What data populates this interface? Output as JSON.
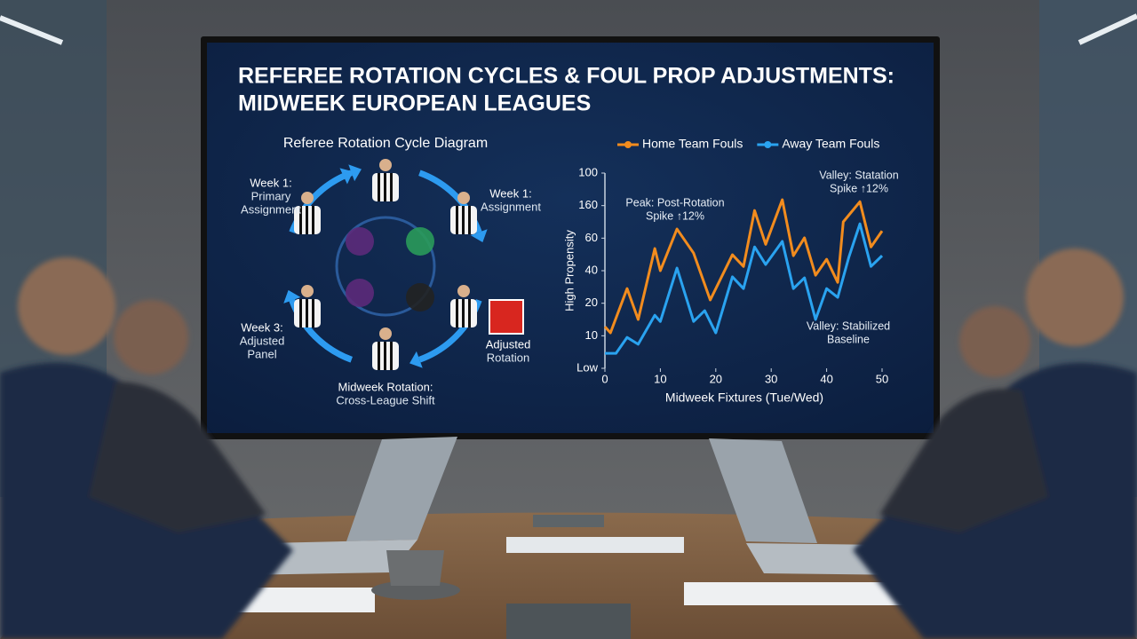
{
  "title": [
    "REFEREE ROTATION CYCLES & FOUL PROP ADJUSTMENTS:",
    "MIDWEEK EUROPEAN LEAGUES"
  ],
  "diagram": {
    "title": "Referee Rotation Cycle Diagram",
    "labels": [
      [
        "Week 1:",
        "Primary",
        "Assignment"
      ],
      [
        "Week 1:",
        "Assignment"
      ],
      [
        "Week 3:",
        "Adjusted",
        "Panel"
      ],
      [
        "Adjusted",
        "Rotation"
      ],
      [
        "Midweek Rotation:",
        "Cross-League Shift"
      ]
    ]
  },
  "chart_data": {
    "type": "line",
    "y_label": "High Propensity",
    "x_label": "Midweek Fixtures (Tue/Wed)",
    "xlim": [
      0,
      50
    ],
    "xticks": [
      0,
      10,
      20,
      30,
      40,
      50
    ],
    "ylim": [
      0,
      60
    ],
    "yticks": [
      {
        "value": 0,
        "label": "Low"
      },
      10,
      20,
      {
        "value": 30,
        "label": "40"
      },
      {
        "value": 40,
        "label": "60"
      },
      {
        "value": 50,
        "label": "160"
      },
      {
        "value": 60,
        "label": "100"
      }
    ],
    "legend": "top",
    "series": [
      {
        "name": "Home Team Fouls",
        "color": "#f28c1e",
        "x": [
          0,
          1,
          4,
          6,
          9,
          10,
          13,
          16,
          19,
          23,
          25,
          27,
          29,
          32,
          34,
          36,
          38,
          40,
          42,
          43,
          46,
          48,
          50
        ],
        "values": [
          12.8,
          10.9,
          24.5,
          15.0,
          36.8,
          30.0,
          42.8,
          35.4,
          21.0,
          34.9,
          31.3,
          48.5,
          38.1,
          51.8,
          34.6,
          40.1,
          28.6,
          33.5,
          26.4,
          45.0,
          51.2,
          37.3,
          42.2
        ]
      },
      {
        "name": "Away Team Fouls",
        "color": "#2aa3f0",
        "x": [
          0,
          2,
          4,
          6,
          9,
          10,
          13,
          16,
          18,
          20,
          23,
          25,
          27,
          29,
          32,
          34,
          36,
          38,
          40,
          42,
          44,
          46,
          48,
          50
        ],
        "values": [
          4.6,
          4.6,
          9.5,
          7.4,
          16.3,
          14.4,
          30.8,
          14.4,
          17.7,
          10.9,
          28.1,
          24.5,
          37.3,
          31.9,
          39.0,
          24.5,
          27.8,
          15.0,
          24.5,
          21.8,
          34.1,
          44.4,
          31.3,
          34.6
        ]
      }
    ],
    "annotations": [
      {
        "lines": [
          "Peak: Post-Rotation",
          "Spike ↑12%"
        ]
      },
      {
        "lines": [
          "Valley: Statation",
          "Spike ↑12%"
        ]
      },
      {
        "lines": [
          "Valley: Stabilized",
          "Baseline"
        ]
      }
    ]
  }
}
